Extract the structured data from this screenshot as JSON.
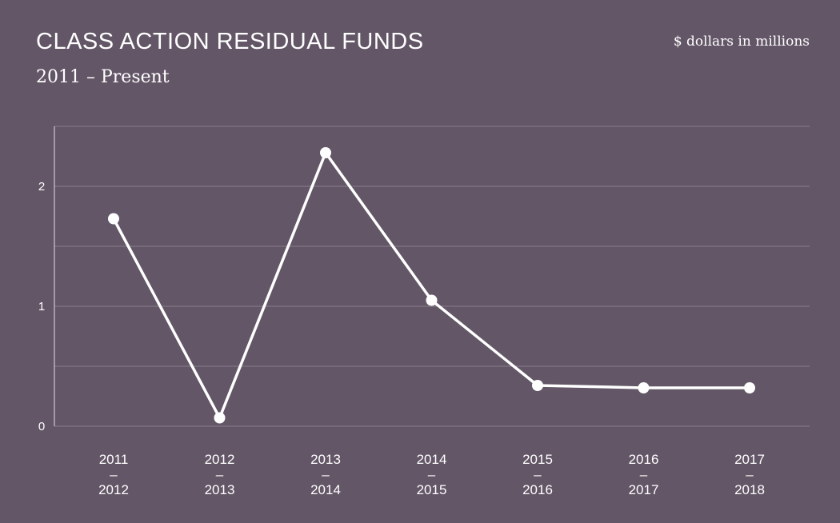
{
  "header": {
    "title": "CLASS ACTION RESIDUAL FUNDS",
    "subtitle": "2011 – Present",
    "units": "$ dollars in millions"
  },
  "colors": {
    "background": "#635667",
    "line": "#ffffff",
    "grid": "#8a7f8c"
  },
  "chart_data": {
    "type": "line",
    "title": "CLASS ACTION RESIDUAL FUNDS",
    "subtitle": "2011 – Present",
    "ylabel": "$ dollars in millions",
    "xlabel": "",
    "categories": [
      [
        "2011",
        "–",
        "2012"
      ],
      [
        "2012",
        "–",
        "2013"
      ],
      [
        "2013",
        "–",
        "2014"
      ],
      [
        "2014",
        "–",
        "2015"
      ],
      [
        "2015",
        "–",
        "2016"
      ],
      [
        "2016",
        "–",
        "2017"
      ],
      [
        "2017",
        "–",
        "2018"
      ]
    ],
    "values": [
      1.73,
      0.07,
      2.28,
      1.05,
      0.34,
      0.32,
      0.32
    ],
    "ylim": [
      0,
      2.5
    ],
    "yticks": [
      0,
      1,
      2
    ],
    "gridlines": [
      0,
      0.5,
      1,
      1.5,
      2,
      2.5
    ],
    "grid": true,
    "legend": "none"
  }
}
